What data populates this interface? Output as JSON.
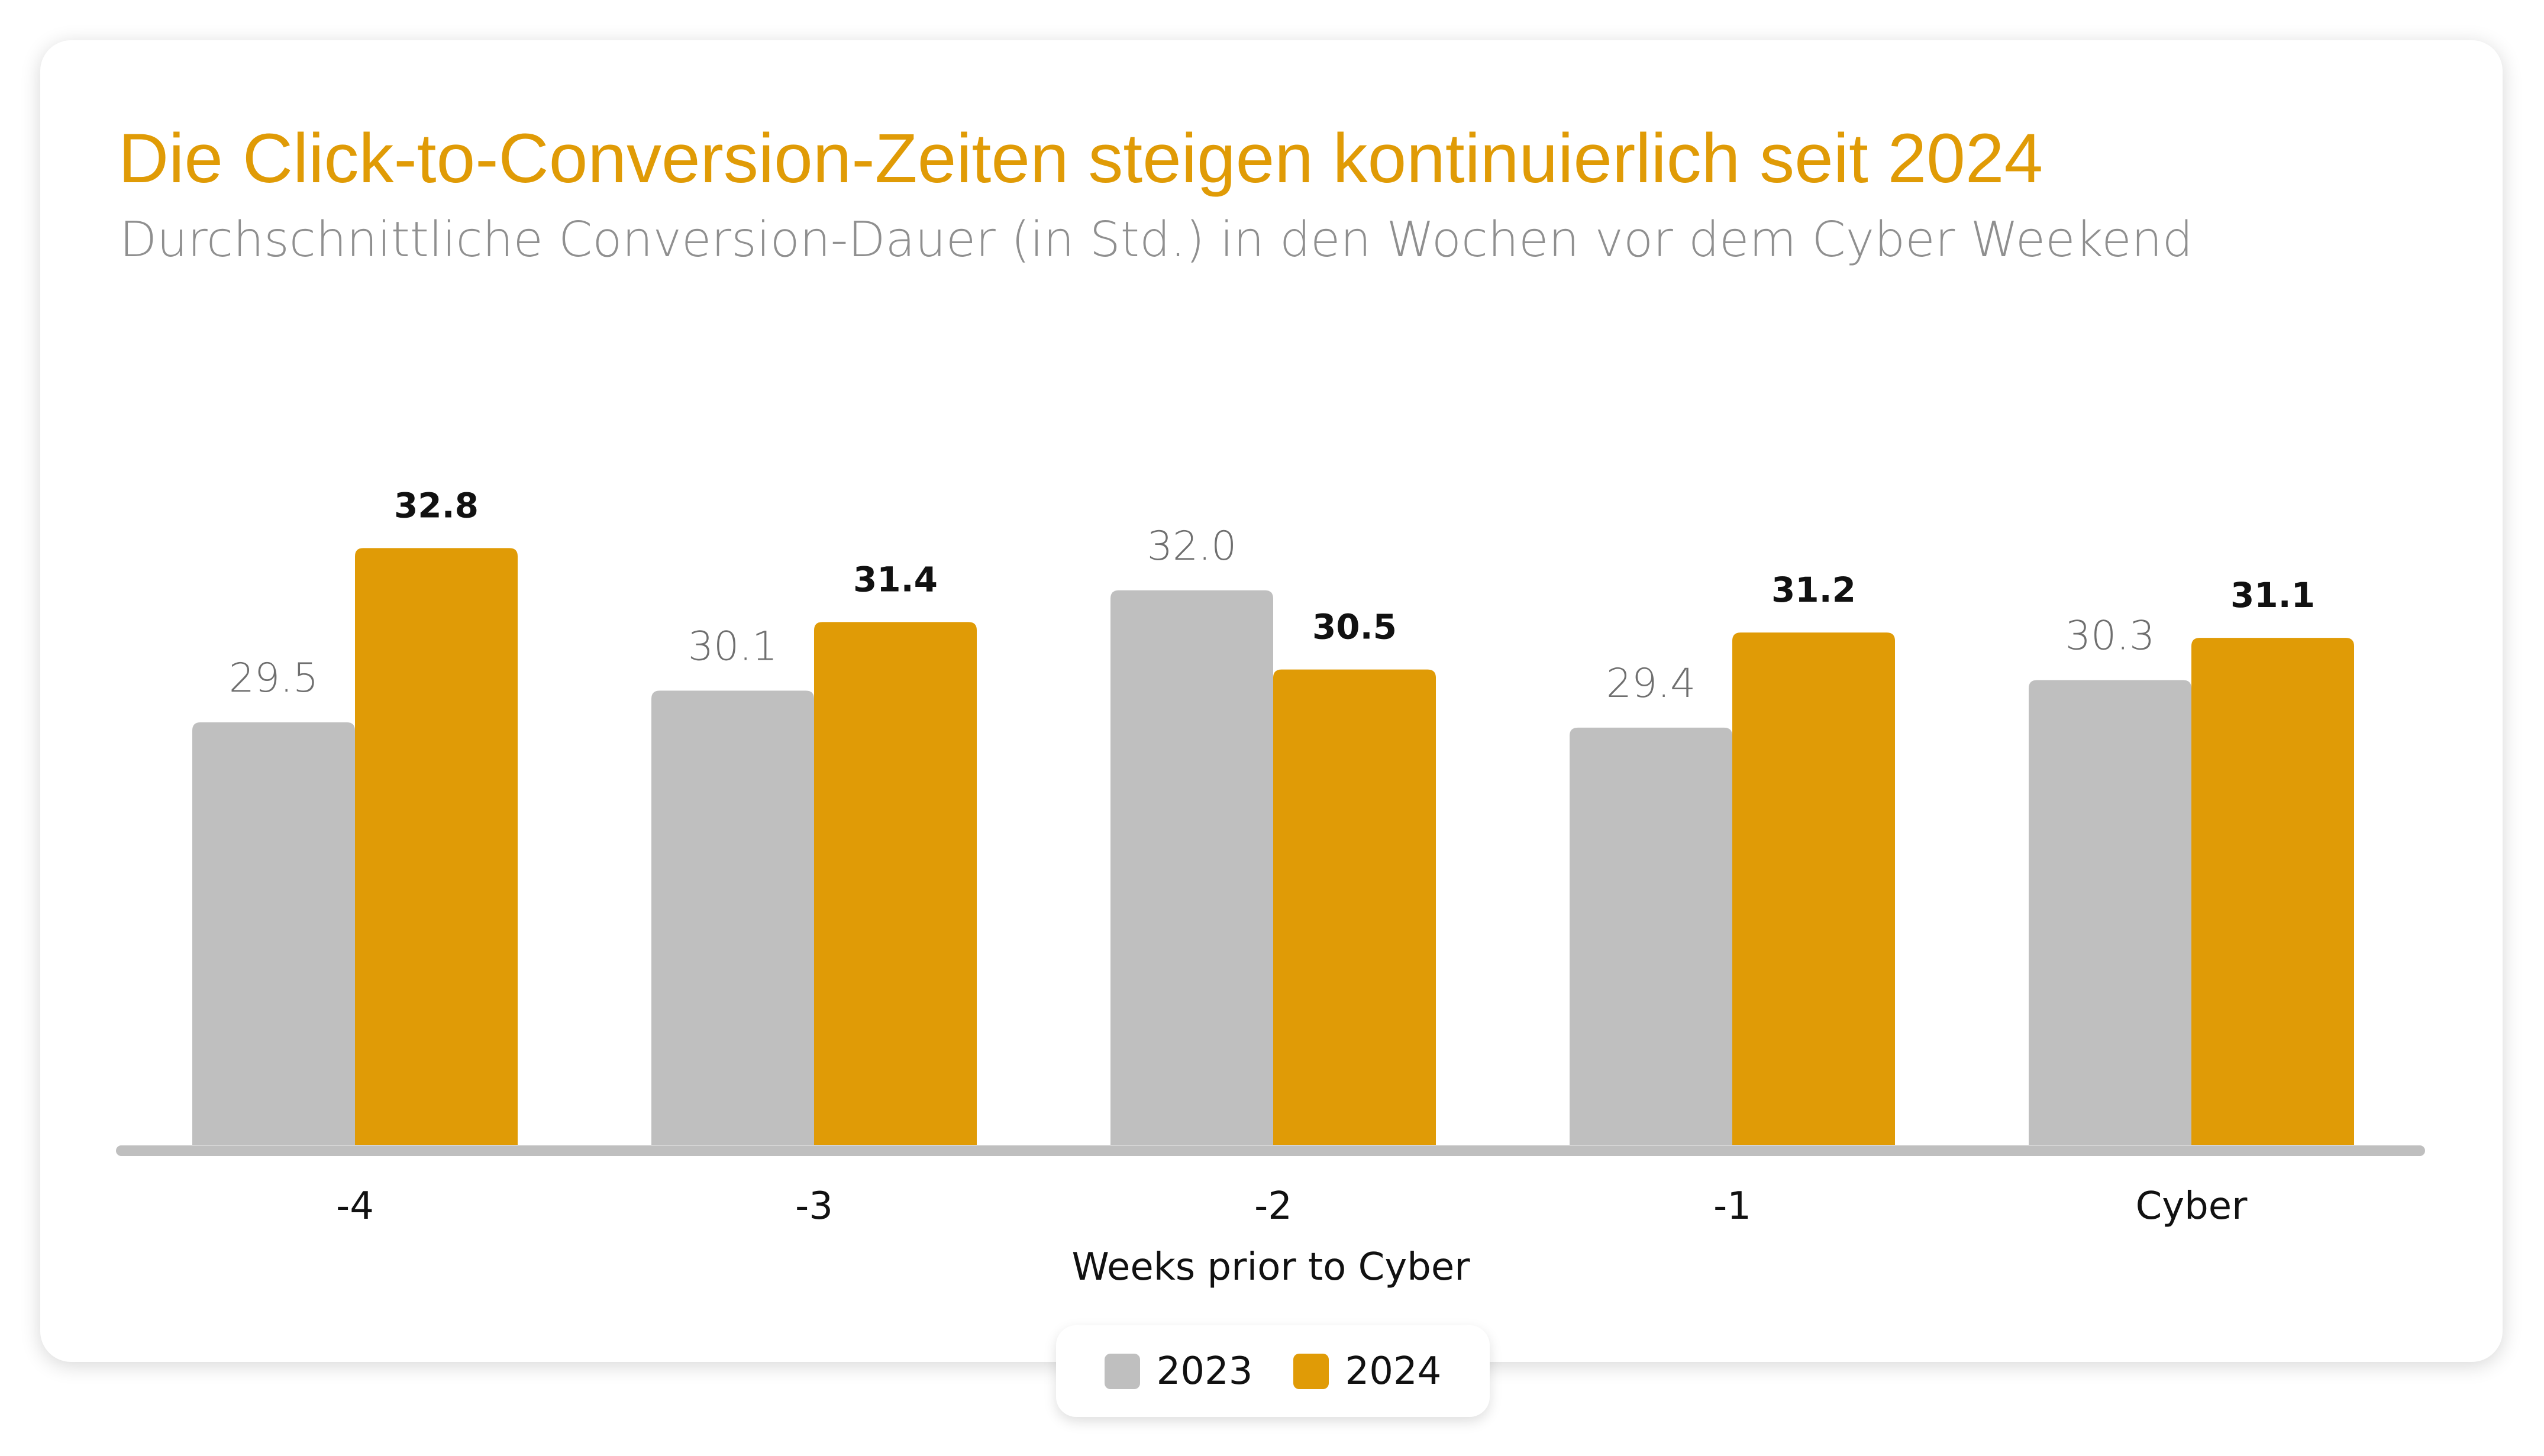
{
  "header": {
    "title": "Die Click-to-Conversion-Zeiten steigen kontinuierlich seit 2024",
    "subtitle": "Durchschnittliche Conversion-Dauer (in Std.) in den Wochen vor dem Cyber Weekend"
  },
  "colors": {
    "accent": "#E09B06",
    "series_2023": "#BFBFBF",
    "series_2024": "#E09B06",
    "baseline": "#BFBFBF"
  },
  "legend": [
    {
      "label": "2023",
      "color": "#BFBFBF"
    },
    {
      "label": "2024",
      "color": "#E09B06"
    }
  ],
  "chart_data": {
    "type": "bar",
    "title": "Die Click-to-Conversion-Zeiten steigen kontinuierlich seit 2024",
    "xlabel": "Weeks prior to Cyber",
    "ylabel": "",
    "categories": [
      "-4",
      "-3",
      "-2",
      "-1",
      "Cyber"
    ],
    "series": [
      {
        "name": "2023",
        "values": [
          29.5,
          30.1,
          32.0,
          29.4,
          30.3
        ],
        "labels": [
          "29.5",
          "30.1",
          "32.0",
          "29.4",
          "30.3"
        ]
      },
      {
        "name": "2024",
        "values": [
          32.8,
          31.4,
          30.5,
          31.2,
          31.1
        ],
        "labels": [
          "32.8",
          "31.4",
          "30.5",
          "31.2",
          "31.1"
        ]
      }
    ],
    "ylim": [
      21.5,
      35.0
    ],
    "grid": false,
    "legend_position": "bottom-center"
  }
}
